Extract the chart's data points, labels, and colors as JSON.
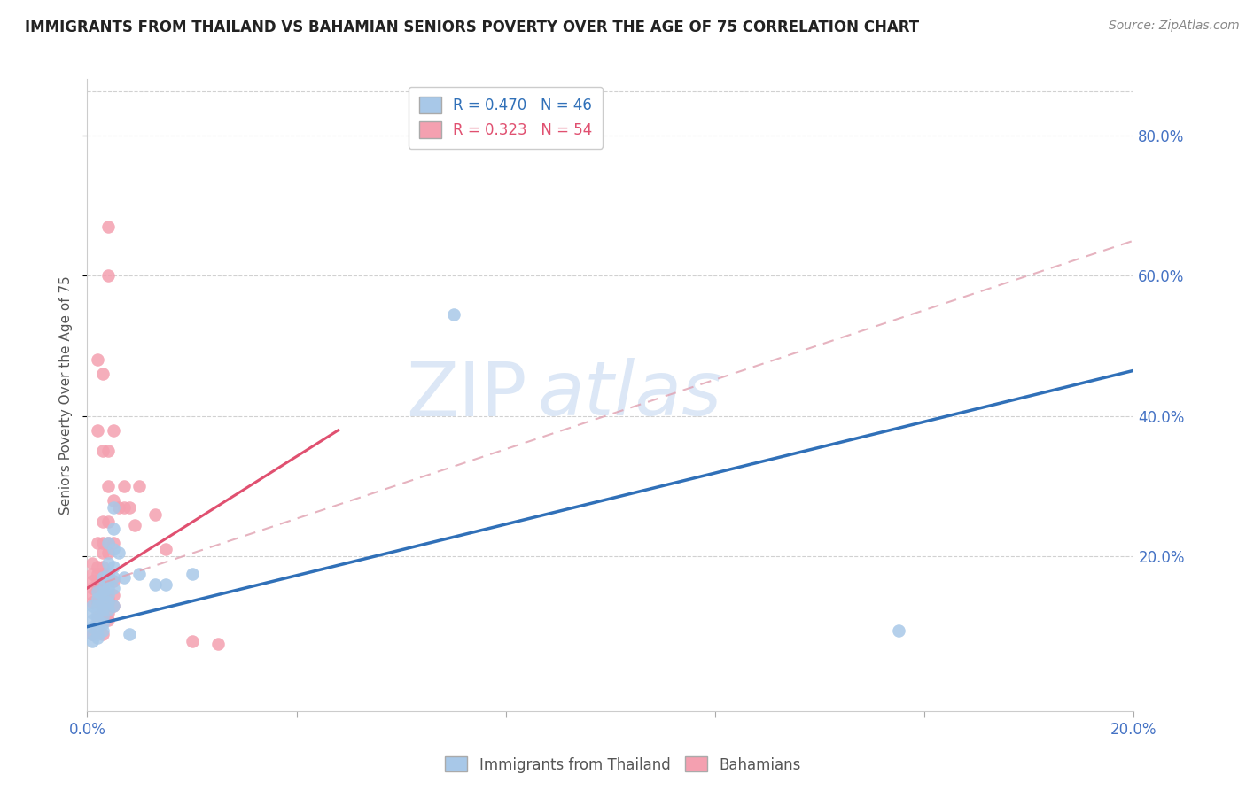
{
  "title": "IMMIGRANTS FROM THAILAND VS BAHAMIAN SENIORS POVERTY OVER THE AGE OF 75 CORRELATION CHART",
  "source": "Source: ZipAtlas.com",
  "ylabel": "Seniors Poverty Over the Age of 75",
  "right_ytick_vals": [
    0.2,
    0.4,
    0.6,
    0.8
  ],
  "right_ytick_labels": [
    "20.0%",
    "40.0%",
    "60.0%",
    "80.0%"
  ],
  "xlim": [
    0.0,
    0.2
  ],
  "ylim": [
    -0.02,
    0.88
  ],
  "legend_r1": "R = 0.470   N = 46",
  "legend_r2": "R = 0.323   N = 54",
  "legend_label1": "Immigrants from Thailand",
  "legend_label2": "Bahamians",
  "blue_color": "#a8c8e8",
  "blue_line_color": "#3070b8",
  "pink_color": "#f4a0b0",
  "pink_line_color": "#e05070",
  "pink_dash_color": "#e0a0b0",
  "blue_scatter": [
    [
      0.001,
      0.13
    ],
    [
      0.001,
      0.12
    ],
    [
      0.001,
      0.11
    ],
    [
      0.001,
      0.1
    ],
    [
      0.001,
      0.09
    ],
    [
      0.001,
      0.08
    ],
    [
      0.002,
      0.15
    ],
    [
      0.002,
      0.14
    ],
    [
      0.002,
      0.13
    ],
    [
      0.002,
      0.12
    ],
    [
      0.002,
      0.11
    ],
    [
      0.002,
      0.1
    ],
    [
      0.002,
      0.09
    ],
    [
      0.002,
      0.085
    ],
    [
      0.003,
      0.17
    ],
    [
      0.003,
      0.155
    ],
    [
      0.003,
      0.145
    ],
    [
      0.003,
      0.135
    ],
    [
      0.003,
      0.125
    ],
    [
      0.003,
      0.115
    ],
    [
      0.003,
      0.105
    ],
    [
      0.003,
      0.095
    ],
    [
      0.004,
      0.22
    ],
    [
      0.004,
      0.19
    ],
    [
      0.004,
      0.175
    ],
    [
      0.004,
      0.165
    ],
    [
      0.004,
      0.155
    ],
    [
      0.004,
      0.145
    ],
    [
      0.004,
      0.135
    ],
    [
      0.004,
      0.125
    ],
    [
      0.005,
      0.27
    ],
    [
      0.005,
      0.24
    ],
    [
      0.005,
      0.21
    ],
    [
      0.005,
      0.185
    ],
    [
      0.005,
      0.17
    ],
    [
      0.005,
      0.155
    ],
    [
      0.005,
      0.13
    ],
    [
      0.006,
      0.205
    ],
    [
      0.007,
      0.17
    ],
    [
      0.008,
      0.09
    ],
    [
      0.01,
      0.175
    ],
    [
      0.013,
      0.16
    ],
    [
      0.015,
      0.16
    ],
    [
      0.02,
      0.175
    ],
    [
      0.07,
      0.545
    ],
    [
      0.155,
      0.095
    ]
  ],
  "pink_scatter": [
    [
      0.001,
      0.19
    ],
    [
      0.001,
      0.175
    ],
    [
      0.001,
      0.165
    ],
    [
      0.001,
      0.155
    ],
    [
      0.001,
      0.145
    ],
    [
      0.001,
      0.135
    ],
    [
      0.001,
      0.09
    ],
    [
      0.002,
      0.48
    ],
    [
      0.002,
      0.38
    ],
    [
      0.002,
      0.22
    ],
    [
      0.002,
      0.185
    ],
    [
      0.002,
      0.175
    ],
    [
      0.002,
      0.165
    ],
    [
      0.002,
      0.155
    ],
    [
      0.002,
      0.135
    ],
    [
      0.002,
      0.115
    ],
    [
      0.003,
      0.46
    ],
    [
      0.003,
      0.35
    ],
    [
      0.003,
      0.25
    ],
    [
      0.003,
      0.22
    ],
    [
      0.003,
      0.205
    ],
    [
      0.003,
      0.185
    ],
    [
      0.003,
      0.175
    ],
    [
      0.003,
      0.155
    ],
    [
      0.003,
      0.145
    ],
    [
      0.003,
      0.125
    ],
    [
      0.003,
      0.115
    ],
    [
      0.003,
      0.09
    ],
    [
      0.004,
      0.67
    ],
    [
      0.004,
      0.6
    ],
    [
      0.004,
      0.35
    ],
    [
      0.004,
      0.3
    ],
    [
      0.004,
      0.25
    ],
    [
      0.004,
      0.22
    ],
    [
      0.004,
      0.205
    ],
    [
      0.004,
      0.14
    ],
    [
      0.004,
      0.12
    ],
    [
      0.004,
      0.11
    ],
    [
      0.005,
      0.38
    ],
    [
      0.005,
      0.28
    ],
    [
      0.005,
      0.22
    ],
    [
      0.005,
      0.165
    ],
    [
      0.005,
      0.145
    ],
    [
      0.005,
      0.13
    ],
    [
      0.006,
      0.27
    ],
    [
      0.007,
      0.3
    ],
    [
      0.007,
      0.27
    ],
    [
      0.008,
      0.27
    ],
    [
      0.009,
      0.245
    ],
    [
      0.01,
      0.3
    ],
    [
      0.013,
      0.26
    ],
    [
      0.015,
      0.21
    ],
    [
      0.02,
      0.08
    ],
    [
      0.025,
      0.075
    ]
  ],
  "blue_line": [
    [
      0.0,
      0.1
    ],
    [
      0.2,
      0.465
    ]
  ],
  "pink_solid_line": [
    [
      0.0,
      0.155
    ],
    [
      0.048,
      0.38
    ]
  ],
  "pink_dashed_line": [
    [
      0.0,
      0.155
    ],
    [
      0.2,
      0.65
    ]
  ],
  "watermark_zip": "ZIP",
  "watermark_atlas": "atlas",
  "background_color": "#ffffff",
  "grid_color": "#cccccc"
}
